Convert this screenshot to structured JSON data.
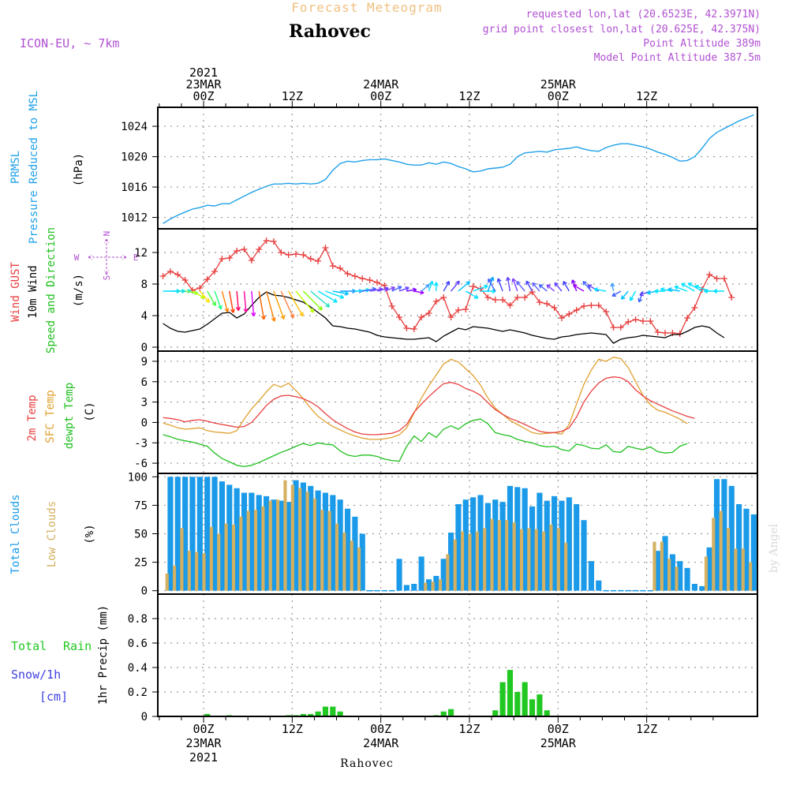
{
  "header": {
    "product": "Forecast Meteogram",
    "location": "Rahovec",
    "model": "ICON-EU, ~ 7km",
    "requested": "requested lon,lat (20.6523E, 42.3971N)",
    "grid_point": "grid point closest lon,lat (20.625E, 42.375N)",
    "point_altitude": "Point Altitude 389m",
    "model_altitude": "Model Point Altitude 387.5m",
    "footer_location": "Rahovec",
    "credit": "by Angel"
  },
  "time_axis": {
    "top_labels": [
      {
        "hour": 0,
        "lines": [
          "2021",
          "23MAR",
          "00Z"
        ]
      },
      {
        "hour": 12,
        "lines": [
          "12Z"
        ]
      },
      {
        "hour": 24,
        "lines": [
          "24MAR",
          "00Z"
        ]
      },
      {
        "hour": 36,
        "lines": [
          "12Z"
        ]
      },
      {
        "hour": 48,
        "lines": [
          "25MAR",
          "00Z"
        ]
      },
      {
        "hour": 60,
        "lines": [
          "12Z"
        ]
      }
    ],
    "bottom_labels": [
      {
        "hour": 0,
        "lines": [
          "00Z",
          "23MAR",
          "2021"
        ]
      },
      {
        "hour": 12,
        "lines": [
          "12Z"
        ]
      },
      {
        "hour": 24,
        "lines": [
          "00Z",
          "24MAR"
        ]
      },
      {
        "hour": 36,
        "lines": [
          "12Z"
        ]
      },
      {
        "hour": 48,
        "lines": [
          "00Z",
          "25MAR"
        ]
      },
      {
        "hour": 60,
        "lines": [
          "12Z"
        ]
      }
    ]
  },
  "panel_labels": {
    "pressure": [
      "PRMSL",
      "Pressure Reduced to MSL"
    ],
    "pressure_unit": "(hPa)",
    "wind": [
      "Wind GUST",
      "10m Wind",
      "Speed and Direction"
    ],
    "wind_unit": "(m/s)",
    "compass": {
      "N": "N",
      "S": "S",
      "W": "W",
      "E": "E"
    },
    "temp": [
      "2m Temp",
      "SFC Temp",
      "dewpt Temp"
    ],
    "temp_unit": "(C)",
    "clouds": [
      "Total Clouds",
      "Low Clouds"
    ],
    "clouds_unit": "(%)",
    "precip_axis": "1hr Precip (mm)",
    "precip_legend": [
      "Total",
      "Rain",
      "Snow/1h",
      "[cm]"
    ]
  },
  "colors": {
    "pressure": "#1fa0e8",
    "gust": "#e83c3c",
    "wind": "#000000",
    "temp2m": "#e84040",
    "sfc": "#e0a030",
    "dewpt": "#20c020",
    "total_clouds": "#1a9ae8",
    "low_clouds": "#d4b060",
    "precip": "#22c822",
    "header_orange": "#f0c080",
    "header_purple": "#b050d0",
    "snow_label": "#4040e0"
  },
  "chart_data": [
    {
      "type": "line",
      "title": "PRMSL Pressure Reduced to MSL",
      "ylabel": "(hPa)",
      "ylim": [
        1010.5,
        1026.5
      ],
      "yticks": [
        1012,
        1016,
        1020,
        1024
      ],
      "x_start_hour": -5.5,
      "x_step_hours": 1,
      "series": [
        {
          "name": "Pressure",
          "values": [
            1011.2,
            1011.8,
            1012.3,
            1012.7,
            1013.1,
            1013.3,
            1013.6,
            1013.5,
            1013.8,
            1013.8,
            1014.3,
            1014.8,
            1015.3,
            1015.7,
            1016.1,
            1016.4,
            1016.4,
            1016.5,
            1016.4,
            1016.5,
            1016.4,
            1016.5,
            1017.0,
            1018.2,
            1019.1,
            1019.4,
            1019.3,
            1019.5,
            1019.6,
            1019.6,
            1019.7,
            1019.5,
            1019.3,
            1019.0,
            1018.9,
            1018.9,
            1019.2,
            1019.0,
            1019.3,
            1019.1,
            1018.7,
            1018.4,
            1018.0,
            1018.1,
            1018.4,
            1018.5,
            1018.6,
            1019.0,
            1020.0,
            1020.5,
            1020.6,
            1020.7,
            1020.6,
            1020.9,
            1021.0,
            1021.1,
            1021.3,
            1021.0,
            1020.8,
            1020.7,
            1021.2,
            1021.5,
            1021.7,
            1021.7,
            1021.5,
            1021.3,
            1021.0,
            1020.6,
            1020.3,
            1019.9,
            1019.4,
            1019.5,
            1020.0,
            1021.1,
            1022.4,
            1023.2,
            1023.7,
            1024.2,
            1024.7,
            1025.1,
            1025.5
          ]
        }
      ]
    },
    {
      "type": "line",
      "title": "Wind GUST / 10m Wind",
      "ylabel": "(m/s)",
      "ylim": [
        -0.5,
        15
      ],
      "yticks": [
        0,
        4,
        8,
        12
      ],
      "x_start_hour": -5.5,
      "x_step_hours": 1,
      "series": [
        {
          "name": "Wind GUST",
          "values": [
            9.0,
            9.6,
            9.2,
            8.5,
            7.2,
            7.5,
            8.6,
            9.6,
            11.2,
            11.3,
            12.2,
            12.4,
            11.0,
            12.4,
            13.5,
            13.4,
            12.0,
            11.7,
            11.8,
            11.7,
            11.2,
            10.9,
            12.6,
            10.3,
            10.0,
            9.3,
            9.0,
            8.7,
            8.5,
            8.2,
            7.8,
            5.2,
            3.8,
            2.4,
            2.3,
            3.8,
            4.3,
            5.8,
            6.3,
            3.8,
            4.7,
            4.8,
            7.7,
            7.4,
            6.3,
            6.0,
            6.0,
            5.3,
            6.3,
            6.3,
            7.0,
            5.7,
            5.5,
            5.0,
            3.7,
            4.2,
            4.7,
            5.2,
            5.3,
            5.3,
            4.5,
            2.5,
            2.5,
            3.2,
            3.5,
            3.3,
            3.3,
            1.9,
            1.8,
            1.8,
            1.7,
            3.7,
            5.0,
            7.3,
            9.2,
            8.7,
            8.7,
            6.3
          ]
        },
        {
          "name": "10m Wind",
          "values": [
            3.0,
            2.4,
            2.0,
            1.9,
            2.1,
            2.3,
            2.9,
            3.6,
            4.3,
            4.4,
            3.7,
            4.2,
            5.3,
            6.3,
            7.0,
            6.6,
            6.5,
            6.3,
            6.0,
            5.7,
            5.1,
            4.4,
            3.7,
            2.7,
            2.6,
            2.4,
            2.3,
            2.1,
            1.9,
            1.5,
            1.3,
            1.2,
            1.1,
            1.0,
            1.0,
            1.1,
            1.2,
            0.7,
            1.4,
            1.9,
            2.4,
            2.2,
            2.6,
            2.5,
            2.4,
            2.2,
            2.0,
            2.2,
            2.0,
            1.8,
            1.5,
            1.3,
            1.1,
            1.0,
            1.3,
            1.4,
            1.6,
            1.7,
            1.8,
            1.7,
            1.6,
            0.5,
            1.0,
            1.2,
            1.3,
            1.5,
            1.4,
            1.3,
            1.2,
            1.6,
            1.6,
            2.0,
            2.5,
            2.7,
            2.5,
            1.8,
            1.2
          ]
        }
      ]
    },
    {
      "type": "line",
      "title": "Temperatures",
      "ylabel": "(C)",
      "ylim": [
        -7.5,
        10.5
      ],
      "yticks": [
        -6,
        -3,
        0,
        3,
        6,
        9
      ],
      "x_start_hour": -5.5,
      "x_step_hours": 1,
      "series": [
        {
          "name": "2m Temp",
          "values": [
            0.7,
            0.6,
            0.4,
            0.1,
            0.3,
            0.4,
            0.2,
            -0.1,
            -0.3,
            -0.5,
            -0.7,
            -0.6,
            0.0,
            1.2,
            2.5,
            3.4,
            3.9,
            4.0,
            3.8,
            3.5,
            3.0,
            2.3,
            1.3,
            0.4,
            -0.3,
            -0.9,
            -1.4,
            -1.7,
            -1.8,
            -1.8,
            -1.7,
            -1.6,
            -1.2,
            -0.3,
            1.5,
            2.7,
            3.8,
            4.8,
            5.7,
            5.9,
            5.6,
            5.0,
            4.6,
            4.0,
            2.9,
            1.9,
            1.2,
            0.6,
            0.2,
            -0.3,
            -0.8,
            -1.3,
            -1.5,
            -1.5,
            -1.3,
            -0.8,
            0.8,
            3.0,
            4.6,
            5.8,
            6.5,
            6.7,
            6.6,
            6.0,
            4.8,
            3.9,
            3.2,
            2.7,
            2.2,
            1.7,
            1.3,
            0.9,
            0.6
          ]
        },
        {
          "name": "SFC Temp",
          "values": [
            -0.1,
            -0.4,
            -0.8,
            -1.0,
            -0.9,
            -0.8,
            -1.2,
            -1.4,
            -1.5,
            -1.6,
            -1.2,
            0.5,
            2.0,
            3.2,
            4.5,
            5.6,
            5.2,
            5.8,
            4.7,
            3.5,
            2.1,
            0.9,
            0.1,
            -0.6,
            -1.1,
            -1.6,
            -2.0,
            -2.3,
            -2.5,
            -2.5,
            -2.4,
            -2.2,
            -1.8,
            -0.8,
            1.4,
            3.6,
            5.4,
            7.0,
            8.6,
            9.3,
            8.9,
            7.9,
            6.9,
            5.5,
            3.6,
            2.1,
            1.2,
            0.3,
            -0.3,
            -0.9,
            -1.5,
            -1.7,
            -1.6,
            -1.5,
            -1.7,
            -0.3,
            2.7,
            5.6,
            7.7,
            9.3,
            9.0,
            9.6,
            9.4,
            8.1,
            6.0,
            4.0,
            2.6,
            1.8,
            1.5,
            1.0,
            0.5,
            -0.2
          ]
        },
        {
          "name": "dewpt Temp",
          "values": [
            -1.8,
            -2.1,
            -2.5,
            -2.7,
            -2.9,
            -3.2,
            -3.5,
            -4.5,
            -5.3,
            -5.8,
            -6.3,
            -6.5,
            -6.3,
            -5.9,
            -5.4,
            -4.9,
            -4.4,
            -4.0,
            -3.5,
            -3.1,
            -3.4,
            -3.0,
            -3.2,
            -3.3,
            -4.2,
            -4.8,
            -5.0,
            -4.8,
            -4.8,
            -5.0,
            -5.4,
            -5.6,
            -5.7,
            -3.5,
            -2.0,
            -2.8,
            -1.5,
            -2.2,
            -1.0,
            -0.5,
            -1.0,
            -0.2,
            0.3,
            0.5,
            -0.2,
            -1.5,
            -1.8,
            -2.0,
            -2.5,
            -2.8,
            -3.0,
            -3.4,
            -3.6,
            -3.5,
            -4.0,
            -4.2,
            -3.2,
            -3.4,
            -3.8,
            -3.9,
            -3.3,
            -4.3,
            -4.4,
            -3.5,
            -3.8,
            -4.0,
            -3.6,
            -4.3,
            -4.5,
            -4.4,
            -3.5,
            -3.1
          ]
        }
      ]
    },
    {
      "type": "bar",
      "title": "Clouds",
      "ylabel": "(%)",
      "ylim": [
        -3,
        103
      ],
      "yticks": [
        0,
        25,
        50,
        75,
        100
      ],
      "x_start_hour": -4.5,
      "x_step_hours": 1,
      "series": [
        {
          "name": "Total Clouds",
          "values": [
            100,
            100,
            100,
            100,
            100,
            100,
            100,
            96,
            93,
            90,
            86,
            86,
            84,
            83,
            80,
            79,
            78,
            97,
            95,
            92,
            88,
            86,
            84,
            80,
            72,
            65,
            50,
            0,
            0,
            0,
            0,
            28,
            5,
            6,
            30,
            10,
            13,
            28,
            51,
            76,
            80,
            82,
            84,
            77,
            80,
            78,
            92,
            91,
            90,
            74,
            86,
            79,
            83,
            79,
            82,
            76,
            62,
            26,
            9,
            0,
            0,
            0,
            0,
            0,
            0,
            0,
            35,
            48,
            32,
            26,
            20,
            6,
            4,
            38,
            98,
            98,
            92,
            76,
            72,
            67,
            74,
            85,
            85,
            84,
            93,
            87,
            60
          ]
        },
        {
          "name": "Low Clouds",
          "values": [
            15,
            22,
            55,
            35,
            34,
            33,
            56,
            50,
            59,
            58,
            65,
            70,
            71,
            74,
            79,
            80,
            97,
            93,
            90,
            87,
            81,
            71,
            70,
            59,
            51,
            44,
            38,
            0,
            0,
            0,
            0,
            0,
            0,
            0,
            0,
            7,
            8,
            10,
            32,
            45,
            52,
            50,
            52,
            55,
            63,
            62,
            62,
            60,
            54,
            55,
            54,
            52,
            58,
            55,
            42,
            0,
            0,
            0,
            0,
            0,
            0,
            0,
            0,
            0,
            0,
            0,
            43,
            43,
            28,
            21,
            0,
            0,
            0,
            30,
            64,
            70,
            55,
            37,
            37,
            25,
            15,
            5,
            5,
            10,
            27,
            23,
            0
          ]
        }
      ]
    },
    {
      "type": "bar",
      "title": "1hr Precip",
      "ylabel": "1hr Precip (mm)",
      "ylim": [
        0,
        1.0
      ],
      "yticks": [
        0,
        0.2,
        0.4,
        0.6,
        0.8
      ],
      "x_start_hour": -4.5,
      "x_step_hours": 1,
      "series": [
        {
          "name": "Total Rain",
          "values": [
            0,
            0,
            0,
            0,
            0,
            0.02,
            0,
            0,
            0.01,
            0,
            0,
            0,
            0,
            0,
            0,
            0,
            0.01,
            0.01,
            0.02,
            0.02,
            0.04,
            0.08,
            0.08,
            0.04,
            0,
            0,
            0,
            0,
            0,
            0,
            0,
            0,
            0,
            0,
            0,
            0,
            0.01,
            0.04,
            0.06,
            0,
            0,
            0,
            0,
            0,
            0.05,
            0.28,
            0.38,
            0.2,
            0.28,
            0.14,
            0.18,
            0.05,
            0,
            0,
            0,
            0,
            0,
            0,
            0,
            0,
            0,
            0,
            0,
            0,
            0,
            0,
            0,
            0,
            0,
            0,
            0,
            0,
            0,
            0,
            0,
            0,
            0,
            0,
            0,
            0,
            0,
            0,
            0,
            0,
            0,
            0,
            0
          ]
        }
      ]
    }
  ],
  "wind_arrows": {
    "x_start_hour": -5.5,
    "x_step_hours": 1,
    "directions_deg": [
      270,
      270,
      270,
      280,
      300,
      320,
      330,
      340,
      345,
      350,
      355,
      355,
      355,
      350,
      345,
      340,
      335,
      330,
      320,
      315,
      310,
      300,
      290,
      280,
      270,
      270,
      265,
      260,
      260,
      255,
      250,
      245,
      250,
      260,
      280,
      230,
      200,
      180,
      210,
      220,
      230,
      300,
      250,
      270,
      200,
      150,
      160,
      170,
      160,
      140,
      150,
      140,
      130,
      130,
      140,
      150,
      160,
      120,
      140,
      120,
      100,
      170,
      60,
      40,
      30,
      20,
      70,
      80,
      90,
      100,
      100,
      110,
      120,
      120,
      110,
      90,
      90
    ],
    "colors": [
      "#00e0ff",
      "#00e0ff",
      "#20e0c0",
      "#80ff40",
      "#c0ff00",
      "#ffe000",
      "#40ff40",
      "#20ff80",
      "#ff8000",
      "#ff4000",
      "#ff0060",
      "#ff00a0",
      "#e000ff",
      "#ff6000",
      "#ff8000",
      "#ffa000",
      "#ff8040",
      "#ffc000",
      "#c0ff00",
      "#80ff00",
      "#20e0c0",
      "#00e0ff",
      "#00e0ff",
      "#00c0ff",
      "#00a0ff",
      "#40a0ff",
      "#00e0ff",
      "#4060ff",
      "#8040ff",
      "#6040ff",
      "#8040ff",
      "#4060ff",
      "#6040ff",
      "#8000ff",
      "#a000ff",
      "#40a0ff",
      "#00e0ff",
      "#00e0ff",
      "#4040ff",
      "#6040ff",
      "#00c0ff",
      "#00e0ff",
      "#00e0ff",
      "#00e0ff",
      "#00a0ff",
      "#4060ff",
      "#4040ff",
      "#6040ff",
      "#8040ff",
      "#6060ff",
      "#4040ff",
      "#6060ff",
      "#4060ff",
      "#8040ff",
      "#6040ff",
      "#4040ff",
      "#8000ff",
      "#a000ff",
      "#4060ff",
      "#6040ff",
      "#00e0ff",
      "#40a0ff",
      "#4060ff",
      "#00c0ff",
      "#00e0ff",
      "#4060ff",
      "#6040ff",
      "#00c0ff",
      "#00e0ff",
      "#00e0ff",
      "#00c0ff",
      "#00e0ff",
      "#00e0ff",
      "#00e0ff",
      "#00e0ff",
      "#00e0ff",
      "#00e0ff"
    ]
  }
}
